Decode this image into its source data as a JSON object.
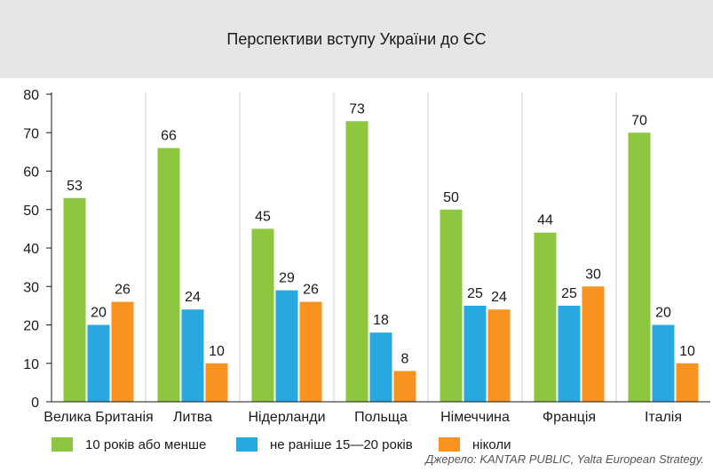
{
  "chart_data": {
    "type": "bar",
    "title": "Перспективи вступу України до ЄС",
    "categories": [
      "Велика Британія",
      "Литва",
      "Нідерланди",
      "Польща",
      "Німеччина",
      "Франція",
      "Італія"
    ],
    "series": [
      {
        "name": "10 років або менше",
        "color": "#8dc63f",
        "values": [
          53,
          66,
          45,
          73,
          50,
          44,
          70
        ]
      },
      {
        "name": "не раніше 15—20 років",
        "color": "#29a8e0",
        "values": [
          20,
          24,
          29,
          18,
          25,
          25,
          20
        ]
      },
      {
        "name": "ніколи",
        "color": "#f7931e",
        "values": [
          26,
          10,
          26,
          8,
          24,
          30,
          10
        ]
      }
    ],
    "yticks": [
      0,
      10,
      20,
      30,
      40,
      50,
      60,
      70,
      80
    ],
    "ylim": [
      0,
      80
    ],
    "grid": "vertical category separators",
    "legend": "bottom",
    "source": "Джерело: KANTAR PUBLIC, Yalta European Strategy."
  }
}
